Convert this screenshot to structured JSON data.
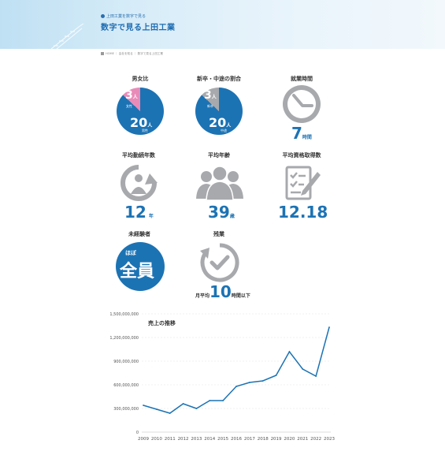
{
  "header": {
    "subtitle": "上田工業を数字で見る",
    "title": "数字で見る上田工業"
  },
  "breadcrumb": [
    "HOME",
    "会社を知る",
    "数字で見る上田工業"
  ],
  "stats": {
    "gender": {
      "title": "男女比",
      "female_count": "3",
      "female_unit": "人",
      "female_label": "女性",
      "male_count": "20",
      "male_unit": "人",
      "male_label": "男性",
      "colors": {
        "male": "#1c73b4",
        "female": "#e98bb8"
      }
    },
    "hire": {
      "title": "新卒・中途の割合",
      "new_count": "3",
      "new_unit": "人",
      "new_label": "新卒",
      "mid_count": "20",
      "mid_unit": "人",
      "mid_label": "中途",
      "colors": {
        "mid": "#1c73b4",
        "new": "#a7a9ac"
      }
    },
    "hours": {
      "title": "就業時間",
      "value": "7",
      "unit": "時間",
      "icon": "clock-icon"
    },
    "tenure": {
      "title": "平均勤続年数",
      "value": "12",
      "unit": "年",
      "icon": "person-cycle-icon"
    },
    "age": {
      "title": "平均年齢",
      "value": "39",
      "unit": "歳",
      "icon": "group-people-icon"
    },
    "quals": {
      "title": "平均資格取得数",
      "value": "12.18",
      "icon": "document-pen-icon"
    },
    "inexperienced": {
      "title": "未経験者",
      "prefix": "ほぼ",
      "value": "全員"
    },
    "overtime": {
      "title": "残業",
      "prefix": "月平均",
      "value": "10",
      "unit": "時間以下",
      "icon": "timer-check-icon"
    }
  },
  "chart_data": {
    "type": "line",
    "title": "売上の推移",
    "xlabel": "",
    "ylabel": "",
    "x": [
      "2009",
      "2010",
      "2011",
      "2012",
      "2013",
      "2014",
      "2015",
      "2016",
      "2017",
      "2018",
      "2019",
      "2020",
      "2021",
      "2022",
      "2023"
    ],
    "series": [
      {
        "values": [
          340000000,
          290000000,
          240000000,
          360000000,
          300000000,
          400000000,
          400000000,
          580000000,
          630000000,
          650000000,
          720000000,
          1020000000,
          800000000,
          710000000,
          1330000000
        ]
      }
    ],
    "ylim": [
      0,
      1500000000
    ],
    "yticks": [
      "0",
      "300,000,000",
      "600,000,000",
      "900,000,000",
      "1,200,000,000",
      "1,500,000,000"
    ],
    "ytick_values": [
      0,
      300000000,
      600000000,
      900000000,
      1200000000,
      1500000000
    ],
    "line_color": "#1c73b4",
    "grid": "horizontal dashed"
  }
}
